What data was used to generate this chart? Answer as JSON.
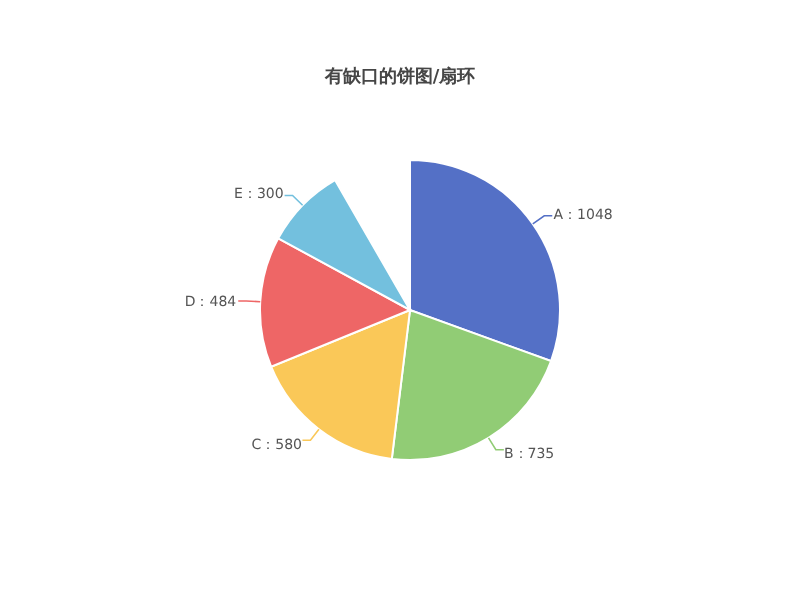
{
  "chart_data": {
    "type": "pie",
    "title": "有缺口的饼图/扇环",
    "categories": [
      null,
      null,
      null,
      null,
      null
    ],
    "values": [
      1048,
      735,
      580,
      484,
      300
    ],
    "colors": [
      "#5470c6",
      "#91cc75",
      "#fac858",
      "#ee6666",
      "#73c0de"
    ],
    "value_labels": [
      "A：1048",
      "B：735",
      "C：580",
      "D：484",
      "E：300"
    ]
  }
}
